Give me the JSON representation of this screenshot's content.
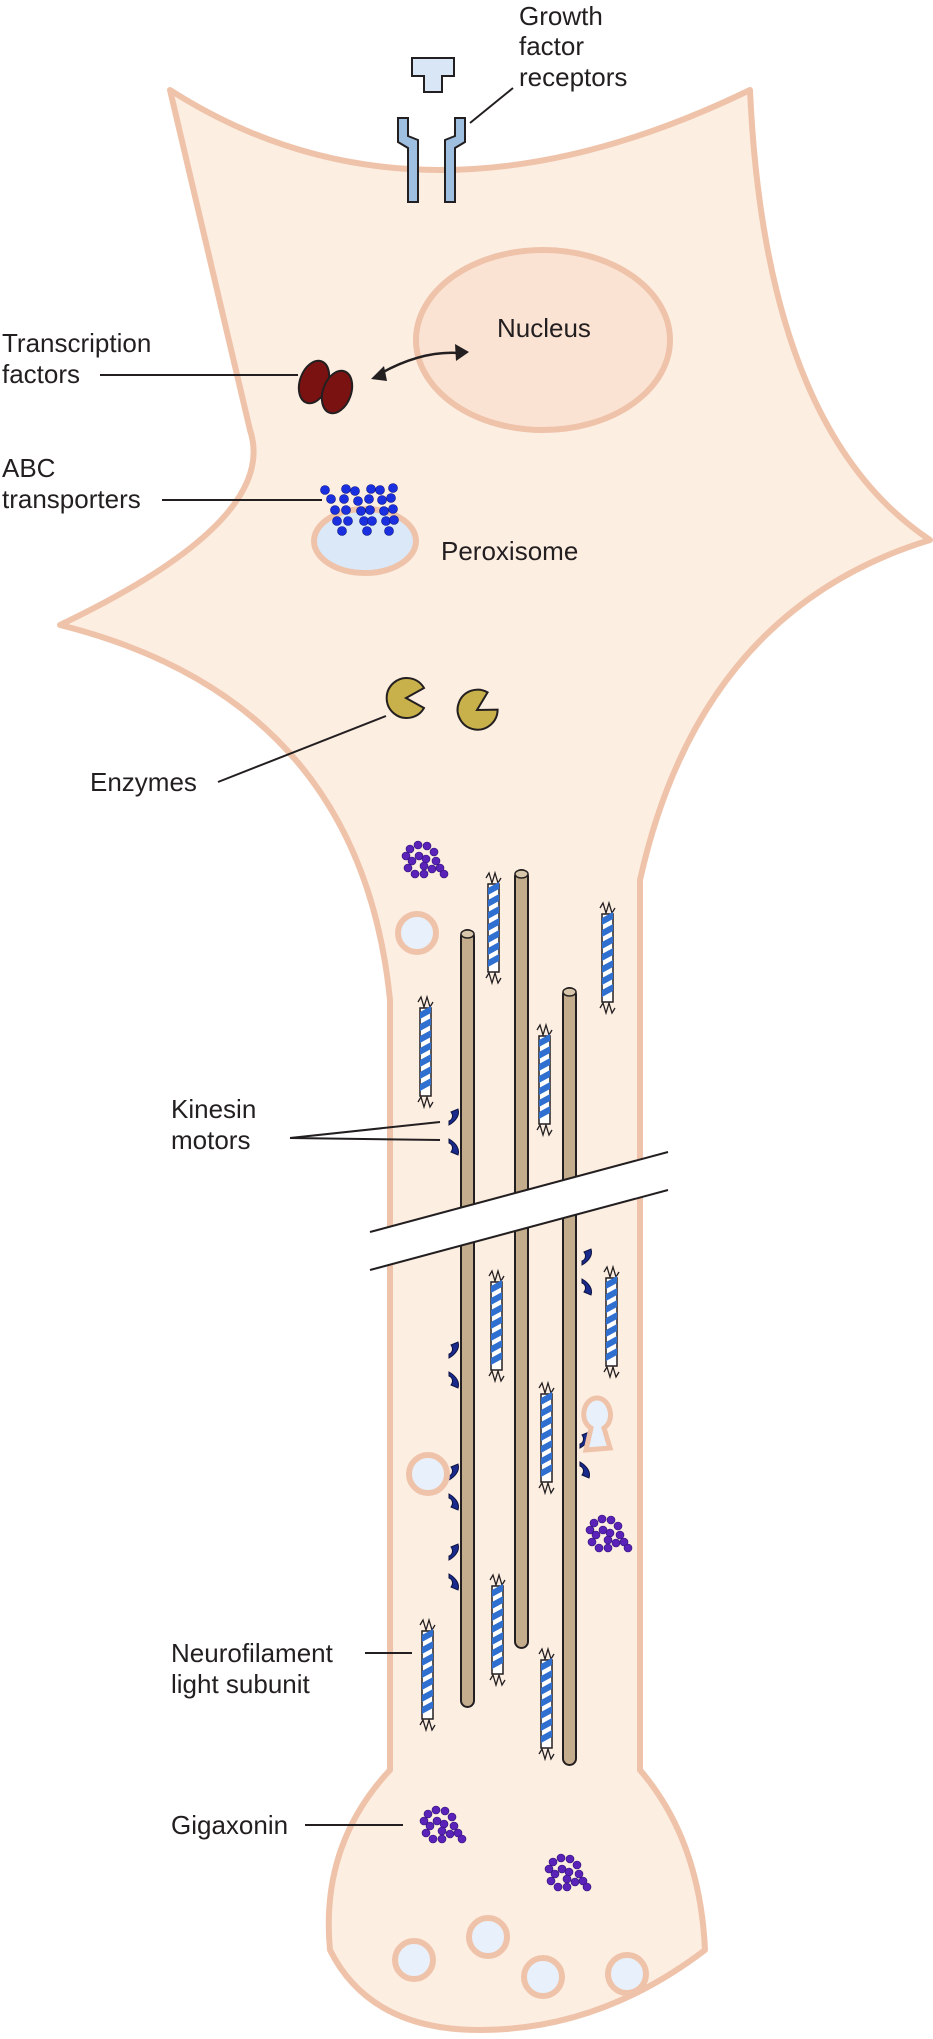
{
  "labels": {
    "growth_factor_receptors": [
      "Growth",
      "factor",
      "receptors"
    ],
    "nucleus": "Nucleus",
    "transcription_factors": [
      "Transcription",
      "factors"
    ],
    "abc_transporters": [
      "ABC",
      "transporters"
    ],
    "peroxisome": "Peroxisome",
    "enzymes": "Enzymes",
    "kinesin_motors": [
      "Kinesin",
      "motors"
    ],
    "neurofilament_light_subunit": [
      "Neurofilament",
      "light subunit"
    ],
    "gigaxonin": "Gigaxonin"
  },
  "colors": {
    "cell_fill": "#fdeee2",
    "membrane": "#efc3aa",
    "nucleus_fill": "#fbe3d3",
    "receptor": "#9fbfe0",
    "transcription_factor": "#7a1212",
    "abc_transporter": "#1a2fe0",
    "peroxisome_fill": "#dbe8f8",
    "enzyme": "#c8b04a",
    "microtubule": "#c4ad8c",
    "neurofilament": "#2f6fd0",
    "kinesin": "#1a2a8c",
    "gigaxonin": "#5a22b8",
    "vesicle_fill": "#e8f1fb"
  }
}
